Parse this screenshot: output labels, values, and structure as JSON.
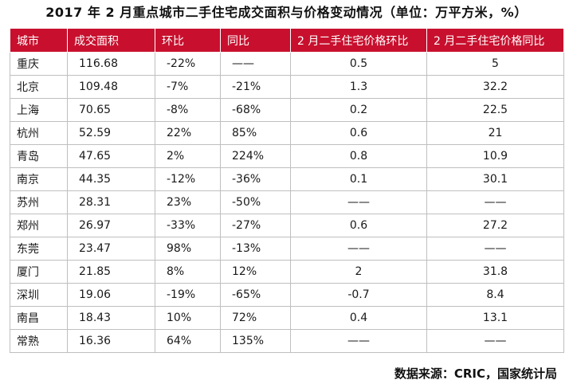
{
  "title": "2017 年 2 月重点城市二手住宅成交面积与价格变动情况（单位：万平方米，%）",
  "table": {
    "headers": [
      "城市",
      "成交面积",
      "环比",
      "同比",
      "2 月二手住宅价格环比",
      "2 月二手住宅价格同比"
    ],
    "rows": [
      [
        "重庆",
        "116.68",
        "-22%",
        "——",
        "0.5",
        "5"
      ],
      [
        "北京",
        "109.48",
        "-7%",
        "-21%",
        "1.3",
        "32.2"
      ],
      [
        "上海",
        "70.65",
        "-8%",
        "-68%",
        "0.2",
        "22.5"
      ],
      [
        "杭州",
        "52.59",
        "22%",
        "85%",
        "0.6",
        "21"
      ],
      [
        "青岛",
        "47.65",
        "2%",
        "224%",
        "0.8",
        "10.9"
      ],
      [
        "南京",
        "44.35",
        "-12%",
        "-36%",
        "0.1",
        "30.1"
      ],
      [
        "苏州",
        "28.31",
        "23%",
        "-50%",
        "——",
        "——"
      ],
      [
        "郑州",
        "26.97",
        "-33%",
        "-27%",
        "0.6",
        "27.2"
      ],
      [
        "东莞",
        "23.47",
        "98%",
        "-13%",
        "——",
        "——"
      ],
      [
        "厦门",
        "21.85",
        "8%",
        "12%",
        "2",
        "31.8"
      ],
      [
        "深圳",
        "19.06",
        "-19%",
        "-65%",
        "-0.7",
        "8.4"
      ],
      [
        "南昌",
        "18.43",
        "10%",
        "72%",
        "0.4",
        "13.1"
      ],
      [
        "常熟",
        "16.36",
        "64%",
        "135%",
        "——",
        "——"
      ]
    ]
  },
  "source": "数据来源：CRIC，国家统计局",
  "colors": {
    "header_background": "#c8102e",
    "header_text": "#ffffff",
    "grid_line": "#bfbfbf"
  }
}
